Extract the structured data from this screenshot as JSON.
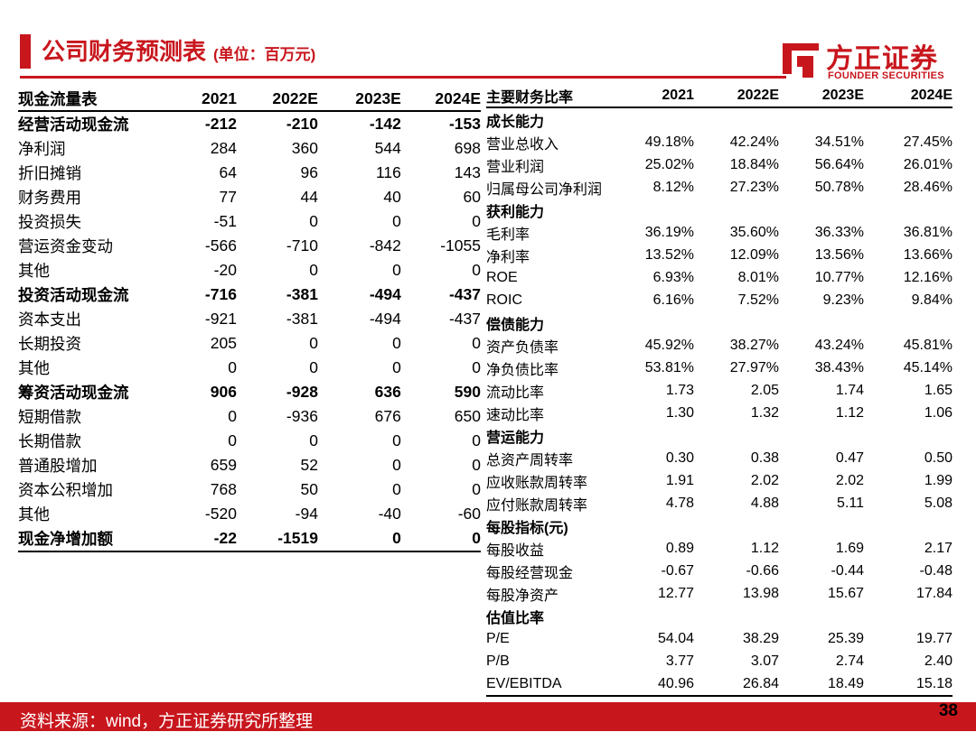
{
  "header": {
    "title": "公司财务预测表",
    "unit": "(单位：百万元)"
  },
  "logo": {
    "cn": "方正证券",
    "en": "FOUNDER SECURITIES",
    "color": "#c8161d"
  },
  "cashflow": {
    "headers": [
      "现金流量表",
      "2021",
      "2022E",
      "2023E",
      "2024E"
    ],
    "rows": [
      {
        "label": "经营活动现金流",
        "values": [
          "-212",
          "-210",
          "-142",
          "-153"
        ],
        "bold": true
      },
      {
        "label": "净利润",
        "values": [
          "284",
          "360",
          "544",
          "698"
        ]
      },
      {
        "label": "折旧摊销",
        "values": [
          "64",
          "96",
          "116",
          "143"
        ]
      },
      {
        "label": "财务费用",
        "values": [
          "77",
          "44",
          "40",
          "60"
        ]
      },
      {
        "label": "投资损失",
        "values": [
          "-51",
          "0",
          "0",
          "0"
        ]
      },
      {
        "label": "营运资金变动",
        "values": [
          "-566",
          "-710",
          "-842",
          "-1055"
        ]
      },
      {
        "label": "其他",
        "values": [
          "-20",
          "0",
          "0",
          "0"
        ]
      },
      {
        "label": "投资活动现金流",
        "values": [
          "-716",
          "-381",
          "-494",
          "-437"
        ],
        "bold": true
      },
      {
        "label": "资本支出",
        "values": [
          "-921",
          "-381",
          "-494",
          "-437"
        ]
      },
      {
        "label": "长期投资",
        "values": [
          "205",
          "0",
          "0",
          "0"
        ]
      },
      {
        "label": "其他",
        "values": [
          "0",
          "0",
          "0",
          "0"
        ]
      },
      {
        "label": "筹资活动现金流",
        "values": [
          "906",
          "-928",
          "636",
          "590"
        ],
        "bold": true
      },
      {
        "label": "短期借款",
        "values": [
          "0",
          "-936",
          "676",
          "650"
        ]
      },
      {
        "label": "长期借款",
        "values": [
          "0",
          "0",
          "0",
          "0"
        ]
      },
      {
        "label": "普通股增加",
        "values": [
          "659",
          "52",
          "0",
          "0"
        ]
      },
      {
        "label": "资本公积增加",
        "values": [
          "768",
          "50",
          "0",
          "0"
        ]
      },
      {
        "label": "其他",
        "values": [
          "-520",
          "-94",
          "-40",
          "-60"
        ]
      },
      {
        "label": "现金净增加额",
        "values": [
          "-22",
          "-1519",
          "0",
          "0"
        ],
        "bold": true
      }
    ]
  },
  "ratios": {
    "headers": [
      "主要财务比率",
      "2021",
      "2022E",
      "2023E",
      "2024E"
    ],
    "rows": [
      {
        "label": "成长能力",
        "section": true
      },
      {
        "label": "营业总收入",
        "values": [
          "49.18%",
          "42.24%",
          "34.51%",
          "27.45%"
        ]
      },
      {
        "label": "营业利润",
        "values": [
          "25.02%",
          "18.84%",
          "56.64%",
          "26.01%"
        ]
      },
      {
        "label": "归属母公司净利润",
        "values": [
          "8.12%",
          "27.23%",
          "50.78%",
          "28.46%"
        ]
      },
      {
        "label": "获利能力",
        "section": true
      },
      {
        "label": "毛利率",
        "values": [
          "36.19%",
          "35.60%",
          "36.33%",
          "36.81%"
        ]
      },
      {
        "label": "净利率",
        "values": [
          "13.52%",
          "12.09%",
          "13.56%",
          "13.66%"
        ]
      },
      {
        "label": "ROE",
        "values": [
          "6.93%",
          "8.01%",
          "10.77%",
          "12.16%"
        ]
      },
      {
        "label": "ROIC",
        "values": [
          "6.16%",
          "7.52%",
          "9.23%",
          "9.84%"
        ]
      },
      {
        "label": "偿债能力",
        "section": true
      },
      {
        "label": "资产负债率",
        "values": [
          "45.92%",
          "38.27%",
          "43.24%",
          "45.81%"
        ]
      },
      {
        "label": "净负债比率",
        "values": [
          "53.81%",
          "27.97%",
          "38.43%",
          "45.14%"
        ]
      },
      {
        "label": "流动比率",
        "values": [
          "1.73",
          "2.05",
          "1.74",
          "1.65"
        ]
      },
      {
        "label": "速动比率",
        "values": [
          "1.30",
          "1.32",
          "1.12",
          "1.06"
        ]
      },
      {
        "label": "营运能力",
        "section": true
      },
      {
        "label": "总资产周转率",
        "values": [
          "0.30",
          "0.38",
          "0.47",
          "0.50"
        ]
      },
      {
        "label": "应收账款周转率",
        "values": [
          "1.91",
          "2.02",
          "2.02",
          "1.99"
        ]
      },
      {
        "label": "应付账款周转率",
        "values": [
          "4.78",
          "4.88",
          "5.11",
          "5.08"
        ]
      },
      {
        "label": "每股指标(元)",
        "section": true
      },
      {
        "label": "每股收益",
        "values": [
          "0.89",
          "1.12",
          "1.69",
          "2.17"
        ]
      },
      {
        "label": "每股经营现金",
        "values": [
          "-0.67",
          "-0.66",
          "-0.44",
          "-0.48"
        ]
      },
      {
        "label": "每股净资产",
        "values": [
          "12.77",
          "13.98",
          "15.67",
          "17.84"
        ]
      },
      {
        "label": "估值比率",
        "section": true
      },
      {
        "label": "P/E",
        "values": [
          "54.04",
          "38.29",
          "25.39",
          "19.77"
        ]
      },
      {
        "label": "P/B",
        "values": [
          "3.77",
          "3.07",
          "2.74",
          "2.40"
        ]
      },
      {
        "label": "EV/EBITDA",
        "values": [
          "40.96",
          "26.84",
          "18.49",
          "15.18"
        ]
      }
    ]
  },
  "footer": {
    "source": "资料来源：wind，方正证券研究所整理",
    "page": "38"
  }
}
